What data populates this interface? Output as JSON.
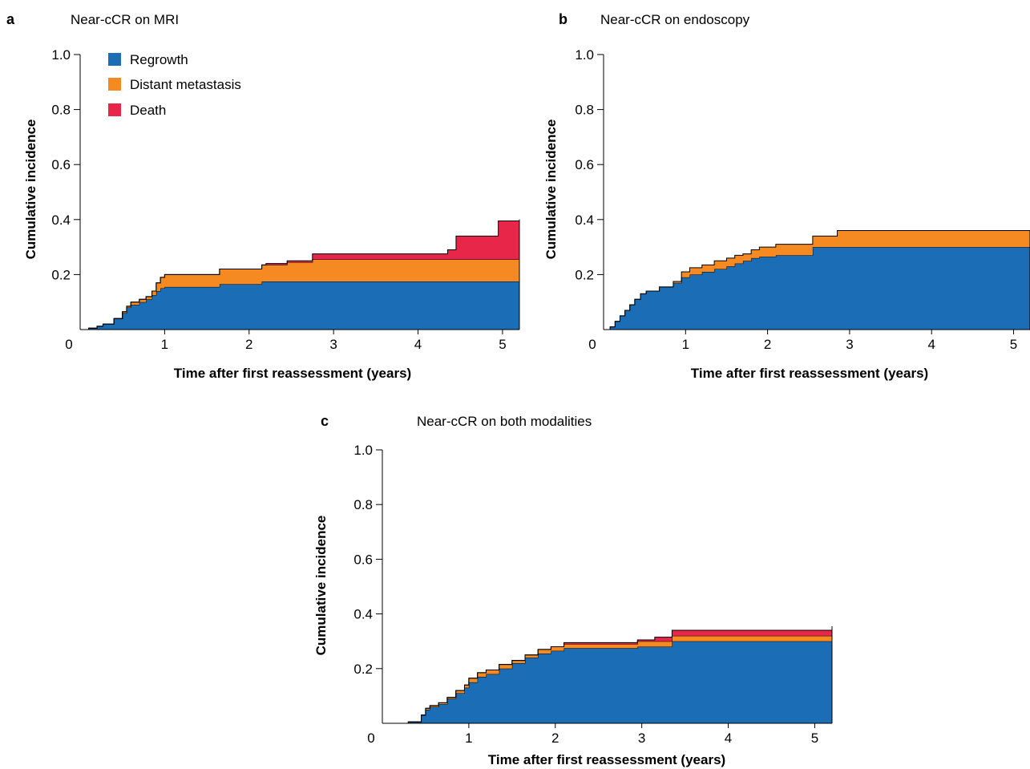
{
  "colors": {
    "regrowth": "#1b6db5",
    "distant_metastasis": "#f58a22",
    "death": "#e8264a"
  },
  "chart_data": [
    {
      "panel": "a",
      "type": "area",
      "title": "Near-cCR on MRI",
      "xlabel": "Time after first reassessment (years)",
      "ylabel": "Cumulative incidence",
      "xlim": [
        0,
        5.2
      ],
      "ylim": [
        0,
        1.0
      ],
      "xticks": [
        "0",
        "1",
        "2",
        "3",
        "4",
        "5"
      ],
      "yticks": [
        "0.2",
        "0.4",
        "0.6",
        "0.8",
        "1.0"
      ],
      "legend": [
        "Regrowth",
        "Distant metastasis",
        "Death"
      ],
      "legend_position": "top-left",
      "series": [
        {
          "name": "Regrowth",
          "color": "#1b6db5",
          "x": [
            0,
            0.1,
            0.2,
            0.27,
            0.4,
            0.5,
            0.55,
            0.6,
            0.7,
            0.78,
            0.85,
            0.9,
            0.95,
            1.0,
            1.65,
            2.15,
            5.2
          ],
          "y": [
            0,
            0.005,
            0.012,
            0.02,
            0.04,
            0.06,
            0.08,
            0.09,
            0.1,
            0.11,
            0.125,
            0.14,
            0.15,
            0.155,
            0.165,
            0.175,
            0.175
          ]
        },
        {
          "name": "Distant metastasis",
          "color": "#f58a22",
          "x": [
            0,
            0.1,
            0.2,
            0.27,
            0.4,
            0.5,
            0.55,
            0.6,
            0.7,
            0.78,
            0.85,
            0.9,
            0.95,
            1.0,
            1.4,
            1.65,
            2.0,
            2.15,
            2.45,
            2.75,
            5.2
          ],
          "y": [
            0,
            0,
            0,
            0,
            0,
            0.005,
            0.005,
            0.01,
            0.01,
            0.01,
            0.015,
            0.03,
            0.04,
            0.045,
            0.045,
            0.055,
            0.055,
            0.06,
            0.07,
            0.08,
            0.085
          ]
        },
        {
          "name": "Death",
          "color": "#e8264a",
          "x": [
            0,
            2.2,
            2.45,
            2.75,
            4.35,
            4.45,
            4.95,
            5.2
          ],
          "y": [
            0,
            0.005,
            0.005,
            0.02,
            0.035,
            0.085,
            0.14,
            0.14
          ]
        }
      ]
    },
    {
      "panel": "b",
      "type": "area",
      "title": "Near-cCR on endoscopy",
      "xlabel": "Time after first reassessment (years)",
      "ylabel": "Cumulative incidence",
      "xlim": [
        0,
        5.2
      ],
      "ylim": [
        0,
        1.0
      ],
      "xticks": [
        "0",
        "1",
        "2",
        "3",
        "4",
        "5"
      ],
      "yticks": [
        "0.2",
        "0.4",
        "0.6",
        "0.8",
        "1.0"
      ],
      "series": [
        {
          "name": "Regrowth",
          "color": "#1b6db5",
          "x": [
            0,
            0.08,
            0.14,
            0.2,
            0.26,
            0.32,
            0.38,
            0.45,
            0.52,
            0.68,
            0.85,
            0.95,
            1.05,
            1.2,
            1.35,
            1.5,
            1.6,
            1.7,
            1.8,
            1.9,
            2.1,
            2.55,
            2.85,
            5.2
          ],
          "y": [
            0,
            0.01,
            0.03,
            0.05,
            0.07,
            0.09,
            0.11,
            0.13,
            0.14,
            0.155,
            0.17,
            0.19,
            0.2,
            0.21,
            0.22,
            0.23,
            0.24,
            0.25,
            0.26,
            0.265,
            0.27,
            0.3,
            0.3,
            0.3
          ]
        },
        {
          "name": "Distant metastasis",
          "color": "#f58a22",
          "x": [
            0,
            0.08,
            0.14,
            0.2,
            0.26,
            0.32,
            0.38,
            0.45,
            0.52,
            0.68,
            0.85,
            0.95,
            1.05,
            1.2,
            1.35,
            1.5,
            1.6,
            1.7,
            1.8,
            1.9,
            2.1,
            2.55,
            2.85,
            5.2
          ],
          "y": [
            0,
            0,
            0,
            0,
            0,
            0,
            0,
            0,
            0,
            0,
            0.005,
            0.02,
            0.025,
            0.025,
            0.03,
            0.03,
            0.03,
            0.025,
            0.03,
            0.035,
            0.04,
            0.04,
            0.06,
            0.06
          ]
        }
      ]
    },
    {
      "panel": "c",
      "type": "area",
      "title": "Near-cCR on both modalities",
      "xlabel": "Time after first reassessment (years)",
      "ylabel": "Cumulative incidence",
      "xlim": [
        0,
        5.2
      ],
      "ylim": [
        0,
        1.0
      ],
      "xticks": [
        "0",
        "1",
        "2",
        "3",
        "4",
        "5"
      ],
      "yticks": [
        "0.2",
        "0.4",
        "0.6",
        "0.8",
        "1.0"
      ],
      "series": [
        {
          "name": "Regrowth",
          "color": "#1b6db5",
          "x": [
            0,
            0.3,
            0.45,
            0.5,
            0.55,
            0.65,
            0.75,
            0.85,
            0.95,
            1.0,
            1.1,
            1.2,
            1.35,
            1.5,
            1.65,
            1.8,
            1.95,
            2.1,
            2.95,
            3.35,
            5.2
          ],
          "y": [
            0,
            0.005,
            0.03,
            0.05,
            0.06,
            0.07,
            0.09,
            0.11,
            0.13,
            0.15,
            0.17,
            0.18,
            0.2,
            0.22,
            0.24,
            0.255,
            0.265,
            0.275,
            0.28,
            0.3,
            0.31
          ]
        },
        {
          "name": "Distant metastasis",
          "color": "#f58a22",
          "x": [
            0,
            0.3,
            0.45,
            0.5,
            0.55,
            0.65,
            0.75,
            0.85,
            0.95,
            1.0,
            1.1,
            1.2,
            1.35,
            1.5,
            1.65,
            1.8,
            1.95,
            2.1,
            2.95,
            3.35,
            5.2
          ],
          "y": [
            0,
            0,
            0,
            0.005,
            0.005,
            0.005,
            0.005,
            0.01,
            0.01,
            0.015,
            0.015,
            0.015,
            0.015,
            0.01,
            0.01,
            0.015,
            0.015,
            0.015,
            0.02,
            0.02,
            0.025
          ]
        },
        {
          "name": "Death",
          "color": "#e8264a",
          "x": [
            0,
            1.95,
            2.1,
            2.95,
            3.15,
            3.35,
            3.5,
            5.2
          ],
          "y": [
            0,
            0,
            0.005,
            0.005,
            0.015,
            0.02,
            0.02,
            0.02
          ]
        }
      ]
    }
  ]
}
